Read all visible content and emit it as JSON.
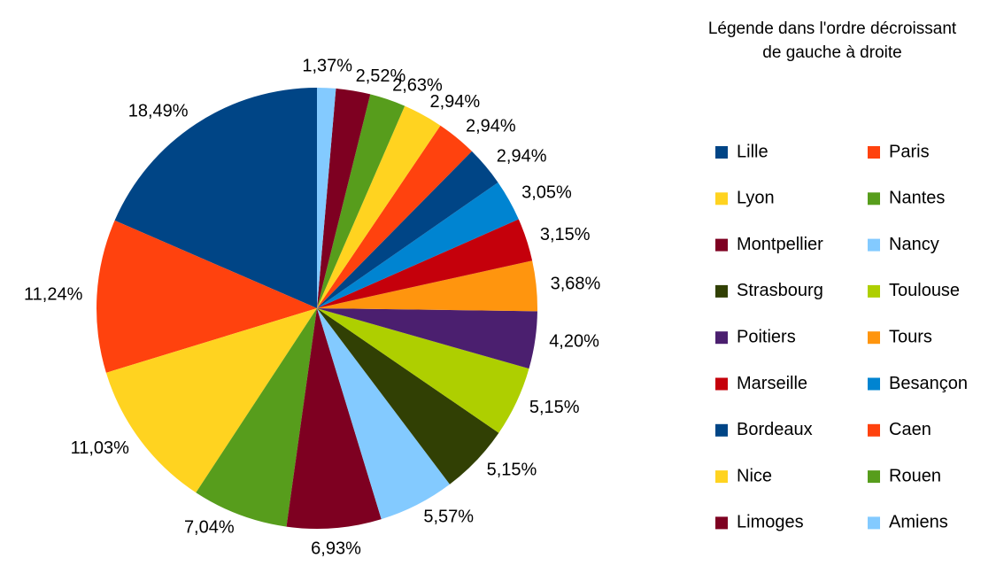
{
  "chart_data": {
    "type": "pie",
    "legend_title": [
      "Légende dans l'ordre décroissant",
      "de gauche à droite"
    ],
    "categories": [
      "Lille",
      "Paris",
      "Lyon",
      "Nantes",
      "Montpellier",
      "Nancy",
      "Strasbourg",
      "Toulouse",
      "Poitiers",
      "Tours",
      "Marseille",
      "Besançon",
      "Bordeaux",
      "Caen",
      "Nice",
      "Rouen",
      "Limoges",
      "Amiens"
    ],
    "values": [
      18.49,
      11.24,
      11.03,
      7.04,
      6.93,
      5.57,
      5.15,
      5.15,
      4.2,
      3.68,
      3.15,
      3.05,
      2.94,
      2.94,
      2.94,
      2.63,
      2.52,
      1.37
    ],
    "value_labels": [
      "18,49%",
      "11,24%",
      "11,03%",
      "7,04%",
      "6,93%",
      "5,57%",
      "5,15%",
      "5,15%",
      "4,20%",
      "3,68%",
      "3,15%",
      "3,05%",
      "2,94%",
      "2,94%",
      "2,94%",
      "2,63%",
      "2,52%",
      "1,37%"
    ],
    "colors": [
      "#004586",
      "#ff420e",
      "#ffd320",
      "#579d1c",
      "#7e0021",
      "#83caff",
      "#314004",
      "#aecf00",
      "#4b1f6f",
      "#ff950e",
      "#c5000b",
      "#0084d1",
      "#004586",
      "#ff420e",
      "#ffd320",
      "#579d1c",
      "#7e0021",
      "#83caff"
    ],
    "direction": "counterclockwise",
    "legend_position": "right"
  }
}
